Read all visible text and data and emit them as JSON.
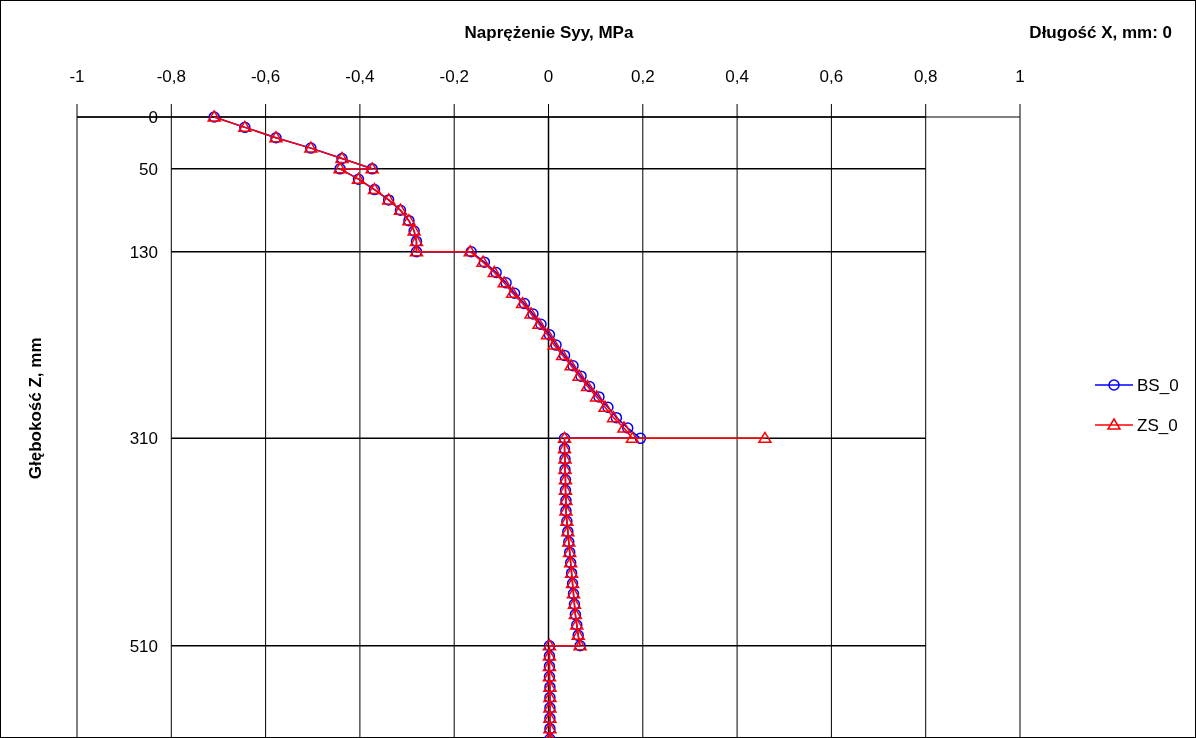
{
  "chart_data": {
    "type": "line",
    "xlabel": "Naprężenie Syy, MPa",
    "ylabel": "Głębokość Z, mm",
    "annotations": [
      "Długość X, mm: 0"
    ],
    "xlim": [
      -1,
      1
    ],
    "ylim": [
      600,
      0
    ],
    "xticks": [
      {
        "value": -1,
        "label": "-1"
      },
      {
        "value": -0.8,
        "label": "-0,8"
      },
      {
        "value": -0.6,
        "label": "-0,6"
      },
      {
        "value": -0.4,
        "label": "-0,4"
      },
      {
        "value": -0.2,
        "label": "-0,2"
      },
      0,
      {
        "value": 0.2,
        "label": "0,2"
      },
      {
        "value": 0.4,
        "label": "0,4"
      },
      {
        "value": 0.6,
        "label": "0,6"
      },
      {
        "value": 0.8,
        "label": "0,8"
      },
      1
    ],
    "yticks": [
      0,
      50,
      130,
      310,
      510
    ],
    "grid": true,
    "legend": "right",
    "series": [
      {
        "name": "BS_0",
        "color": "#0000ff",
        "marker": "circle",
        "x": [
          -0.709,
          -0.644,
          -0.578,
          -0.504,
          -0.438,
          -0.374,
          -0.442,
          -0.403,
          -0.369,
          -0.339,
          -0.314,
          -0.296,
          -0.285,
          -0.28,
          -0.28,
          -0.164,
          -0.136,
          -0.111,
          -0.09,
          -0.072,
          -0.051,
          -0.033,
          -0.016,
          0.002,
          0.016,
          0.034,
          0.052,
          0.069,
          0.087,
          0.107,
          0.126,
          0.144,
          0.168,
          0.195,
          0.034,
          0.034,
          0.035,
          0.035,
          0.036,
          0.036,
          0.037,
          0.037,
          0.039,
          0.041,
          0.043,
          0.045,
          0.047,
          0.049,
          0.051,
          0.053,
          0.055,
          0.057,
          0.06,
          0.063,
          0.067,
          0.002,
          0.002,
          0.002,
          0.002,
          0.003,
          0.003,
          0.003,
          0.003,
          0.003,
          0.003
        ],
        "values": [
          0,
          10,
          20,
          30,
          40,
          50,
          50,
          60,
          70,
          80,
          90,
          100,
          110,
          120,
          130,
          130,
          140,
          150,
          160,
          170,
          180,
          190,
          200,
          210,
          220,
          230,
          240,
          250,
          260,
          270,
          280,
          290,
          300,
          310,
          310,
          320,
          330,
          340,
          350,
          360,
          370,
          380,
          390,
          400,
          410,
          420,
          430,
          440,
          450,
          460,
          470,
          480,
          490,
          500,
          510,
          510,
          520,
          530,
          540,
          550,
          560,
          570,
          580,
          590,
          600
        ]
      },
      {
        "name": "ZS_0",
        "color": "#ff0000",
        "marker": "triangle",
        "x": [
          -0.709,
          -0.644,
          -0.578,
          -0.504,
          -0.438,
          -0.374,
          -0.442,
          -0.403,
          -0.369,
          -0.339,
          -0.314,
          -0.296,
          -0.285,
          -0.28,
          -0.28,
          -0.166,
          -0.139,
          -0.115,
          -0.094,
          -0.076,
          -0.055,
          -0.037,
          -0.02,
          -0.002,
          0.012,
          0.03,
          0.048,
          0.065,
          0.083,
          0.102,
          0.12,
          0.138,
          0.16,
          0.178,
          0.459,
          0.034,
          0.034,
          0.035,
          0.035,
          0.036,
          0.036,
          0.037,
          0.037,
          0.039,
          0.041,
          0.043,
          0.045,
          0.047,
          0.049,
          0.051,
          0.053,
          0.055,
          0.057,
          0.06,
          0.063,
          0.067,
          0.002,
          0.002,
          0.002,
          0.002,
          0.003,
          0.003,
          0.003,
          0.003,
          0.003,
          0.003
        ],
        "values": [
          0,
          10,
          20,
          30,
          40,
          50,
          50,
          60,
          70,
          80,
          90,
          100,
          110,
          120,
          130,
          130,
          140,
          150,
          160,
          170,
          180,
          190,
          200,
          210,
          220,
          230,
          240,
          250,
          260,
          270,
          280,
          290,
          300,
          310,
          310,
          310,
          320,
          330,
          340,
          350,
          360,
          370,
          380,
          390,
          400,
          410,
          420,
          430,
          440,
          450,
          460,
          470,
          480,
          490,
          500,
          510,
          510,
          520,
          530,
          540,
          550,
          560,
          570,
          580,
          590,
          600
        ]
      }
    ]
  }
}
